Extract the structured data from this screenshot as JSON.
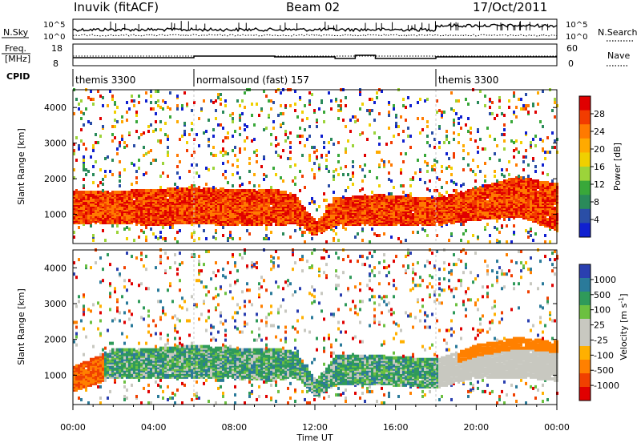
{
  "header": {
    "station": "Inuvik (fitACF)",
    "beam": "Beam 02",
    "date": "17/Oct/2011"
  },
  "summary_panel": {
    "nsky_label": "N.Sky",
    "nsky_ticks": [
      "10^5",
      "10^0"
    ],
    "nsearch_label": "N.Search",
    "nsearch_ticks": [
      "10^5",
      "10^0"
    ],
    "freq_label_line1": "Freq.",
    "freq_label_line2": "[MHz]",
    "freq_ticks": [
      "18",
      "8"
    ],
    "nave_label": "Nave",
    "nave_ticks": [
      "60",
      "0"
    ],
    "cpid_label": "CPID",
    "cpid_segments": [
      {
        "label": "themis 3300",
        "start_hour": 0
      },
      {
        "label": "normalsound (fast) 157",
        "start_hour": 6
      },
      {
        "label": "themis 3300",
        "start_hour": 18
      }
    ]
  },
  "chart_data": [
    {
      "type": "heatmap",
      "title": "",
      "quantity": "Power",
      "ylabel": "Slant Range [km]",
      "xlabel": "Time UT",
      "xlim_hours": [
        0,
        24
      ],
      "ylim": [
        180,
        4500
      ],
      "yticks": [
        1000,
        2000,
        3000,
        4000
      ],
      "colorbar_label": "Power [dB]",
      "colorbar_ticks": [
        "28",
        "24",
        "20",
        "16",
        "12",
        "8",
        "4"
      ],
      "colorbar_colors": [
        "#e00000",
        "#f23c00",
        "#ff7a00",
        "#ffaa00",
        "#f0d000",
        "#9cd43a",
        "#39a83a",
        "#2a8a5a",
        "#2a4ea6",
        "#1020d0"
      ],
      "main_echo_band": [
        {
          "hour": 0.0,
          "low": 700,
          "high": 1600
        },
        {
          "hour": 2.0,
          "low": 700,
          "high": 1600
        },
        {
          "hour": 4.0,
          "low": 650,
          "high": 1650
        },
        {
          "hour": 6.0,
          "low": 700,
          "high": 1700
        },
        {
          "hour": 8.0,
          "low": 650,
          "high": 1650
        },
        {
          "hour": 10.0,
          "low": 650,
          "high": 1650
        },
        {
          "hour": 11.0,
          "low": 700,
          "high": 1500
        },
        {
          "hour": 12.0,
          "low": 350,
          "high": 700
        },
        {
          "hour": 13.0,
          "low": 650,
          "high": 1400
        },
        {
          "hour": 15.0,
          "low": 650,
          "high": 1500
        },
        {
          "hour": 18.0,
          "low": 650,
          "high": 1400
        },
        {
          "hour": 20.0,
          "low": 800,
          "high": 1700
        },
        {
          "hour": 22.0,
          "low": 900,
          "high": 2000
        },
        {
          "hour": 24.0,
          "low": 500,
          "high": 1800
        }
      ]
    },
    {
      "type": "heatmap",
      "title": "",
      "quantity": "Velocity",
      "ylabel": "Slant Range [km]",
      "xlabel": "Time UT",
      "xlim_hours": [
        0,
        24
      ],
      "ylim": [
        180,
        4500
      ],
      "yticks": [
        1000,
        2000,
        3000,
        4000
      ],
      "colorbar_label": "Velocity [m s^-1]",
      "colorbar_ticks": [
        "1000",
        "500",
        "100",
        "25",
        "-25",
        "-100",
        "-500",
        "-1000"
      ],
      "colorbar_colors": [
        "#2a3fb0",
        "#2a7a9a",
        "#2f9a5a",
        "#6cc040",
        "#c8c8c0",
        "#c8c8c0",
        "#ffb000",
        "#ff8000",
        "#f04000",
        "#e00000"
      ],
      "main_echo_band": [
        {
          "hour": 0.0,
          "low": 500,
          "high": 1200
        },
        {
          "hour": 2.0,
          "low": 900,
          "high": 1700
        },
        {
          "hour": 4.0,
          "low": 900,
          "high": 1700
        },
        {
          "hour": 6.0,
          "low": 900,
          "high": 1800
        },
        {
          "hour": 8.0,
          "low": 850,
          "high": 1700
        },
        {
          "hour": 10.0,
          "low": 800,
          "high": 1700
        },
        {
          "hour": 11.0,
          "low": 900,
          "high": 1600
        },
        {
          "hour": 12.0,
          "low": 350,
          "high": 800
        },
        {
          "hour": 13.0,
          "low": 700,
          "high": 1500
        },
        {
          "hour": 15.0,
          "low": 700,
          "high": 1500
        },
        {
          "hour": 18.0,
          "low": 600,
          "high": 1400
        },
        {
          "hour": 20.0,
          "low": 900,
          "high": 1800
        },
        {
          "hour": 22.0,
          "low": 900,
          "high": 2000
        },
        {
          "hour": 24.0,
          "low": 800,
          "high": 1900
        }
      ]
    }
  ],
  "time_axis": {
    "label": "Time UT",
    "ticks": [
      "00:00",
      "04:00",
      "08:00",
      "12:00",
      "16:00",
      "20:00",
      "00:00"
    ]
  },
  "colors": {
    "axis": "#000000",
    "mode_change_line": "#c8c8c8"
  }
}
